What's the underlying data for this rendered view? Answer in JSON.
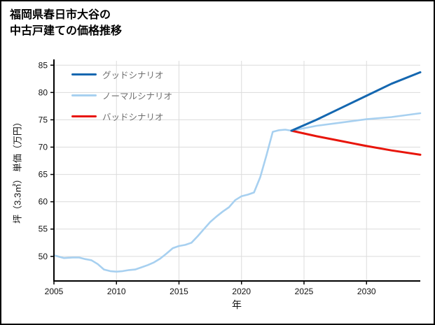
{
  "title": {
    "line1": "福岡県春日市大谷の",
    "line2": "中古戸建ての価格推移"
  },
  "chart_data": {
    "type": "line",
    "title": "福岡県春日市大谷の中古戸建ての価格推移",
    "xlabel": "年",
    "ylabel": "坪（3.3㎡） 単価（万円）",
    "xlim": [
      2005,
      2034.3
    ],
    "ylim": [
      45.5,
      85.8
    ],
    "xticks": [
      2005,
      2010,
      2015,
      2020,
      2025,
      2030
    ],
    "yticks": [
      50,
      55,
      60,
      65,
      70,
      75,
      80,
      85
    ],
    "grid": true,
    "legend_position": "upper-left",
    "series": [
      {
        "name": "グッドシナリオ",
        "color": "#1467b0",
        "width": 3,
        "x": [
          2024,
          2026,
          2028,
          2030,
          2032,
          2034.3
        ],
        "y": [
          73.0,
          75.0,
          77.2,
          79.4,
          81.6,
          83.7
        ]
      },
      {
        "name": "ノーマルシナリオ",
        "color": "#a7d0f0",
        "width": 2.6,
        "x": [
          2005,
          2005.8,
          2006.5,
          2007,
          2007.5,
          2008,
          2008.5,
          2009,
          2009.5,
          2010,
          2010.5,
          2011,
          2011.5,
          2012,
          2012.5,
          2013,
          2013.5,
          2014,
          2014.5,
          2015,
          2015.5,
          2016,
          2016.5,
          2017,
          2017.5,
          2018,
          2018.5,
          2019,
          2019.5,
          2020,
          2020.5,
          2021,
          2021.5,
          2022,
          2022.5,
          2023,
          2023.5,
          2024,
          2026,
          2028,
          2030,
          2032,
          2034.3
        ],
        "y": [
          50.2,
          49.7,
          49.8,
          49.8,
          49.5,
          49.3,
          48.6,
          47.6,
          47.3,
          47.2,
          47.3,
          47.5,
          47.6,
          48.0,
          48.4,
          48.9,
          49.6,
          50.5,
          51.5,
          51.9,
          52.1,
          52.5,
          53.7,
          55.0,
          56.3,
          57.3,
          58.2,
          59.0,
          60.3,
          61.0,
          61.3,
          61.7,
          64.5,
          68.5,
          72.8,
          73.1,
          73.2,
          73.0,
          73.9,
          74.5,
          75.1,
          75.5,
          76.2
        ]
      },
      {
        "name": "バッドシナリオ",
        "color": "#e8150b",
        "width": 3,
        "x": [
          2024,
          2026,
          2028,
          2030,
          2032,
          2034.3
        ],
        "y": [
          73.0,
          72.0,
          71.1,
          70.2,
          69.4,
          68.6
        ]
      }
    ]
  }
}
